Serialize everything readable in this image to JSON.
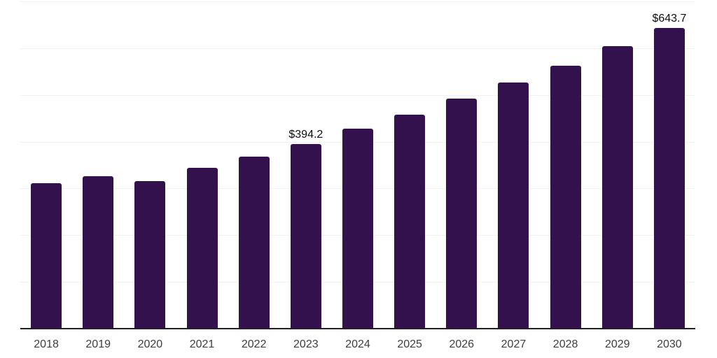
{
  "chart_data": {
    "type": "bar",
    "title": "",
    "xlabel": "",
    "ylabel": "",
    "categories": [
      "2018",
      "2019",
      "2020",
      "2021",
      "2022",
      "2023",
      "2024",
      "2025",
      "2026",
      "2027",
      "2028",
      "2029",
      "2030"
    ],
    "values": [
      310.9,
      326.2,
      315.3,
      343.4,
      368.0,
      394.2,
      427.1,
      457.6,
      492.0,
      526.4,
      562.4,
      604.2,
      643.7
    ],
    "data_labels": [
      {
        "category": "2023",
        "text": "$394.2"
      },
      {
        "category": "2030",
        "text": "$643.7"
      }
    ],
    "ylim": [
      0,
      700
    ],
    "grid": true,
    "gridline_step": 100,
    "legend": false,
    "colors": {
      "bar": "#33114d",
      "grid_line": "#f1f1f4",
      "axis_line": "#212121",
      "tick_label": "#3d3d3d",
      "data_label": "#0d0d0d",
      "background": "#ffffff"
    }
  }
}
